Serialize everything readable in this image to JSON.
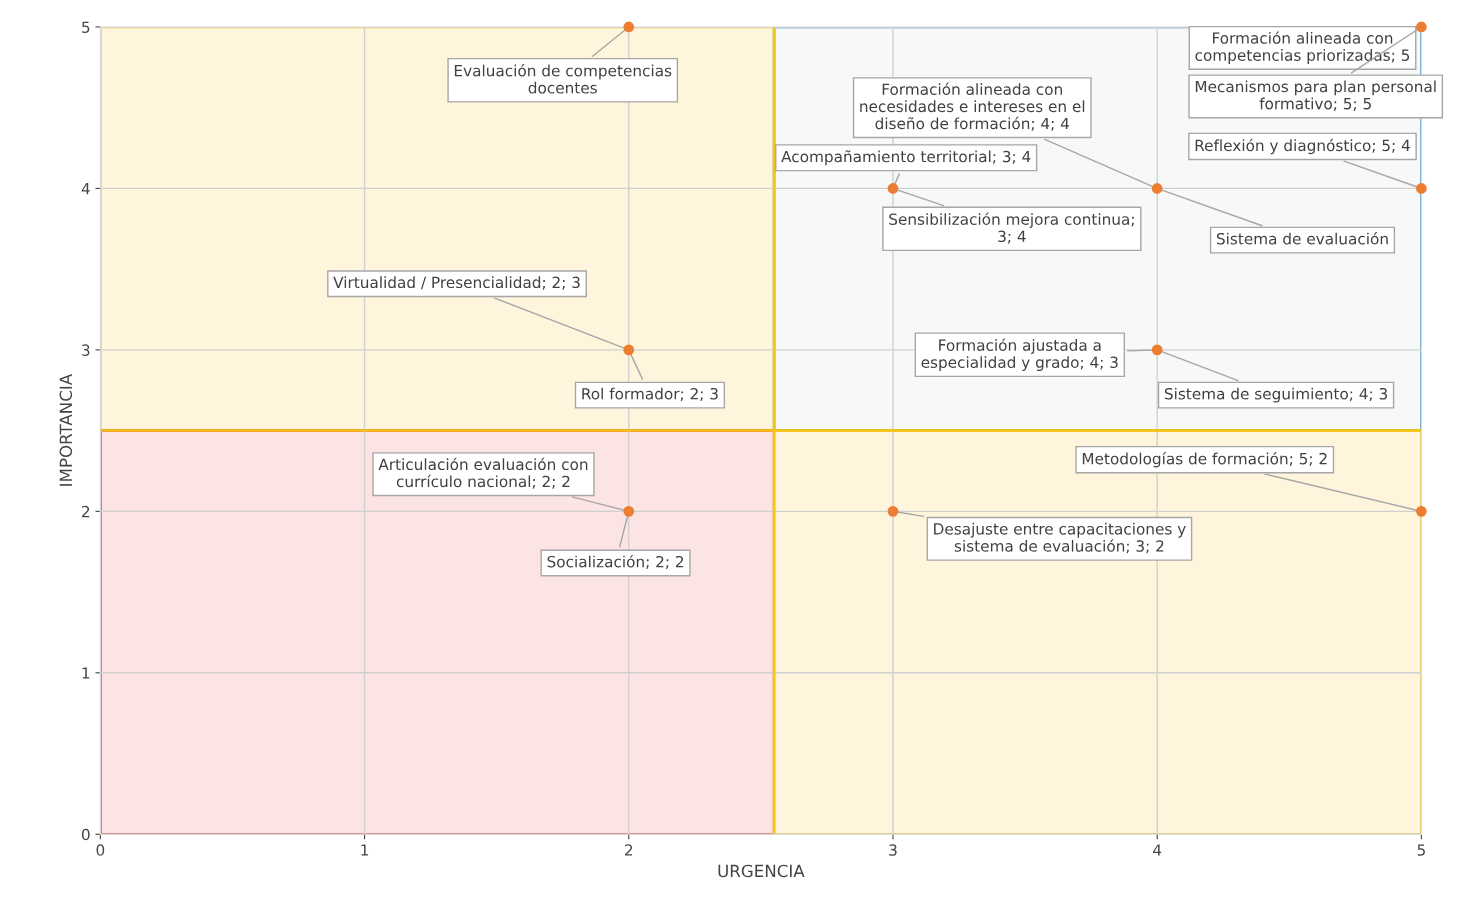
{
  "chart_data": {
    "type": "scatter",
    "xlabel": "URGENCIA",
    "ylabel": "IMPORTANCIA",
    "x": [
      2,
      2,
      2,
      3,
      4,
      5,
      5,
      4,
      5,
      3
    ],
    "series": [
      {
        "color": "#ed7d31",
        "values": [
          5,
          3,
          2,
          4,
          4,
          5,
          4,
          3,
          2,
          2
        ]
      }
    ],
    "xlim": [
      0,
      5
    ],
    "ylim": [
      0,
      5
    ],
    "xticks": [
      0,
      1,
      2,
      3,
      4,
      5
    ],
    "yticks": [
      0,
      1,
      2,
      3,
      4,
      5
    ],
    "grid": true,
    "marker": "circle",
    "ref_lines": [
      {
        "axis": "x",
        "value": 2.55,
        "color": "#f5c518"
      },
      {
        "axis": "y",
        "value": 2.5,
        "color": "#f5c518"
      }
    ],
    "annotations": [
      {
        "text": "Evaluación de competencias\ndocentes",
        "x": 2,
        "y": 5
      },
      {
        "text": "Virtualidad / Presencialidad; 2; 3",
        "x": 2,
        "y": 3
      },
      {
        "text": "Rol formador; 2; 3",
        "x": 2,
        "y": 3
      },
      {
        "text": "Articulación evaluación con\ncurrículo nacional; 2; 2",
        "x": 2,
        "y": 2
      },
      {
        "text": "Socialización; 2; 2",
        "x": 2,
        "y": 2
      },
      {
        "text": "Acompañamiento territorial; 3; 4",
        "x": 3,
        "y": 4
      },
      {
        "text": "Sensibilización mejora continua;\n3; 4",
        "x": 3,
        "y": 4
      },
      {
        "text": "Formación alineada con\nnecesidades e intereses en el\ndiseño de formación; 4; 4",
        "x": 4,
        "y": 4
      },
      {
        "text": "Sistema de evaluación",
        "x": 4,
        "y": 4
      },
      {
        "text": "Formación alineada con\ncompetencias priorizadas; 5",
        "x": 5,
        "y": 5
      },
      {
        "text": "Mecanismos para plan personal\nformativo; 5; 5",
        "x": 5,
        "y": 5
      },
      {
        "text": "Reflexión y diagnóstico; 5; 4",
        "x": 5,
        "y": 4
      },
      {
        "text": "Formación ajustada a\nespecialidad y grado; 4; 3",
        "x": 4,
        "y": 3
      },
      {
        "text": "Sistema de seguimiento; 4; 3",
        "x": 4,
        "y": 3
      },
      {
        "text": "Metodologías de formación; 5; 2",
        "x": 5,
        "y": 2
      },
      {
        "text": "Desajuste entre capacitaciones y\nsistema de evaluación; 3; 2",
        "x": 3,
        "y": 2
      }
    ]
  }
}
